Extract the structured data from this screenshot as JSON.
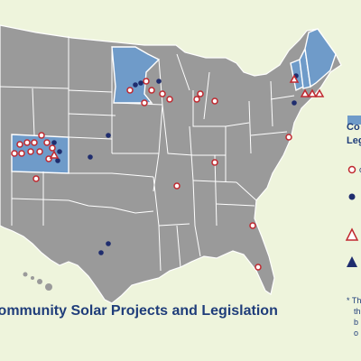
{
  "map": {
    "title": "Community Solar Projects and Legislation",
    "legend": {
      "swatch_label_line1": "Co",
      "swatch_label_line2": "Leg",
      "items": [
        {
          "icon": "open-circle-icon",
          "label": "o"
        },
        {
          "icon": "filled-circle-icon",
          "label": ""
        },
        {
          "icon": "open-triangle-icon",
          "label": ""
        },
        {
          "icon": "filled-triangle-icon",
          "label": ""
        }
      ],
      "footnote_lines": [
        "* Th",
        "th",
        "b",
        "o"
      ]
    },
    "colors": {
      "background": "#eef4dc",
      "state_fill": "#9a9a9a",
      "highlight_fill": "#6f9bc9",
      "border": "#ffffff",
      "marker_open": "#c0282f",
      "marker_filled": "#1f2d6e",
      "text": "#1f3d7a"
    },
    "highlighted_states": [
      "Colorado",
      "Minnesota",
      "Vermont",
      "New Hampshire",
      "Maine"
    ]
  }
}
